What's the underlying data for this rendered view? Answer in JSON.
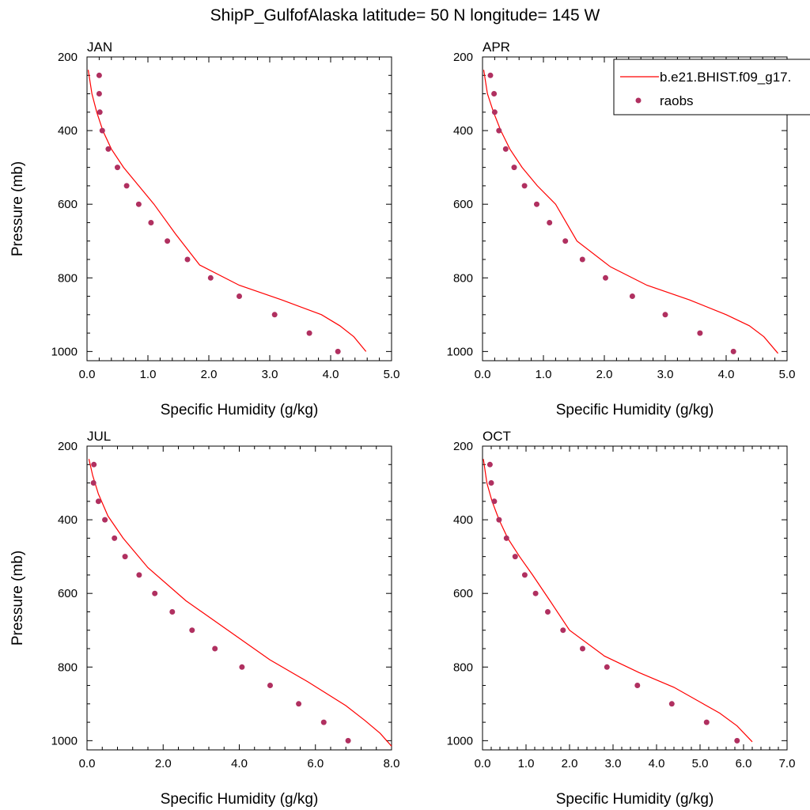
{
  "figure": {
    "title": "ShipP_GulfofAlaska  latitude= 50 N longitude= 145 W"
  },
  "legend": {
    "placement": "top-right of APR panel",
    "model_label": "b.e21.BHIST.f09_g17.",
    "obs_label": "raobs"
  },
  "colors": {
    "model_line": "#ff0000",
    "obs_marker": "#b03060",
    "axes": "#000000"
  },
  "chart_data": [
    {
      "type": "line",
      "panel_title": "JAN",
      "xlabel": "Specific Humidity (g/kg)",
      "ylabel": "Pressure (mb)",
      "xlim": [
        0,
        5
      ],
      "ylim": [
        1025,
        200
      ],
      "y_reversed": true,
      "xticks": [
        "0.0",
        "1.0",
        "2.0",
        "3.0",
        "4.0",
        "5.0"
      ],
      "yticks": [
        "200",
        "400",
        "600",
        "800",
        "1000"
      ],
      "series": [
        {
          "name": "b.e21.BHIST.f09_g17.",
          "style": "line",
          "x": [
            0.02,
            0.08,
            0.16,
            0.26,
            0.4,
            0.6,
            0.85,
            1.1,
            1.45,
            1.85,
            2.5,
            3.2,
            3.85,
            4.15,
            4.38,
            4.58
          ],
          "y": [
            235,
            300,
            350,
            400,
            450,
            500,
            550,
            600,
            680,
            765,
            820,
            860,
            900,
            930,
            960,
            1000
          ]
        },
        {
          "name": "raobs",
          "style": "markers",
          "x": [
            0.2,
            0.2,
            0.21,
            0.25,
            0.35,
            0.5,
            0.65,
            0.85,
            1.05,
            1.32,
            1.65,
            2.03,
            2.5,
            3.08,
            3.65,
            4.12
          ],
          "y": [
            250,
            300,
            350,
            400,
            450,
            500,
            550,
            600,
            650,
            700,
            750,
            800,
            850,
            900,
            950,
            1000
          ]
        }
      ]
    },
    {
      "type": "line",
      "panel_title": "APR",
      "xlabel": "Specific Humidity (g/kg)",
      "ylabel": "",
      "xlim": [
        0,
        5
      ],
      "ylim": [
        1025,
        200
      ],
      "y_reversed": true,
      "xticks": [
        "0.0",
        "1.0",
        "2.0",
        "3.0",
        "4.0",
        "5.0"
      ],
      "yticks": [
        "200",
        "400",
        "600",
        "800",
        "1000"
      ],
      "series": [
        {
          "name": "b.e21.BHIST.f09_g17.",
          "style": "line",
          "x": [
            0.02,
            0.08,
            0.18,
            0.3,
            0.45,
            0.65,
            0.9,
            1.2,
            1.55,
            2.1,
            2.7,
            3.4,
            4.0,
            4.38,
            4.62,
            4.85
          ],
          "y": [
            235,
            300,
            350,
            400,
            450,
            500,
            550,
            600,
            700,
            770,
            820,
            860,
            900,
            930,
            960,
            1005
          ]
        },
        {
          "name": "raobs",
          "style": "markers",
          "x": [
            0.13,
            0.19,
            0.2,
            0.27,
            0.38,
            0.52,
            0.69,
            0.89,
            1.1,
            1.36,
            1.64,
            2.02,
            2.46,
            3.0,
            3.57,
            4.12
          ],
          "y": [
            250,
            300,
            350,
            400,
            450,
            500,
            550,
            600,
            650,
            700,
            750,
            800,
            850,
            900,
            950,
            1000
          ]
        }
      ]
    },
    {
      "type": "line",
      "panel_title": "JUL",
      "xlabel": "Specific Humidity (g/kg)",
      "ylabel": "Pressure (mb)",
      "xlim": [
        0,
        8
      ],
      "ylim": [
        1025,
        200
      ],
      "y_reversed": true,
      "xticks": [
        "0.0",
        "2.0",
        "4.0",
        "6.0",
        "8.0"
      ],
      "yticks": [
        "200",
        "400",
        "600",
        "800",
        "1000"
      ],
      "series": [
        {
          "name": "b.e21.BHIST.f09_g17.",
          "style": "line",
          "x": [
            0.05,
            0.15,
            0.3,
            0.55,
            0.95,
            1.6,
            2.6,
            3.7,
            4.8,
            5.8,
            6.8,
            7.3,
            7.7,
            8.0
          ],
          "y": [
            235,
            280,
            330,
            390,
            450,
            530,
            620,
            700,
            780,
            840,
            905,
            945,
            980,
            1015
          ]
        },
        {
          "name": "raobs",
          "style": "markers",
          "x": [
            0.18,
            0.17,
            0.3,
            0.47,
            0.72,
            1.0,
            1.37,
            1.78,
            2.24,
            2.76,
            3.36,
            4.07,
            4.81,
            5.56,
            6.22,
            6.86
          ],
          "y": [
            250,
            300,
            350,
            400,
            450,
            500,
            550,
            600,
            650,
            700,
            750,
            800,
            850,
            900,
            950,
            1000
          ]
        }
      ]
    },
    {
      "type": "line",
      "panel_title": "OCT",
      "xlabel": "Specific Humidity (g/kg)",
      "ylabel": "",
      "xlim": [
        0,
        7
      ],
      "ylim": [
        1025,
        200
      ],
      "y_reversed": true,
      "xticks": [
        "0.0",
        "1.0",
        "2.0",
        "3.0",
        "4.0",
        "5.0",
        "6.0",
        "7.0"
      ],
      "yticks": [
        "200",
        "400",
        "600",
        "800",
        "1000"
      ],
      "series": [
        {
          "name": "b.e21.BHIST.f09_g17.",
          "style": "line",
          "x": [
            0.02,
            0.1,
            0.22,
            0.38,
            0.58,
            0.85,
            1.15,
            1.55,
            2.0,
            2.8,
            3.6,
            4.4,
            5.0,
            5.45,
            5.85,
            6.2
          ],
          "y": [
            235,
            300,
            350,
            400,
            450,
            500,
            550,
            620,
            700,
            770,
            815,
            855,
            895,
            925,
            960,
            1003
          ]
        },
        {
          "name": "raobs",
          "style": "markers",
          "x": [
            0.17,
            0.2,
            0.27,
            0.38,
            0.55,
            0.75,
            0.97,
            1.22,
            1.5,
            1.85,
            2.3,
            2.86,
            3.56,
            4.35,
            5.15,
            5.85
          ],
          "y": [
            250,
            300,
            350,
            400,
            450,
            500,
            550,
            600,
            650,
            700,
            750,
            800,
            850,
            900,
            950,
            1000
          ]
        }
      ]
    }
  ]
}
